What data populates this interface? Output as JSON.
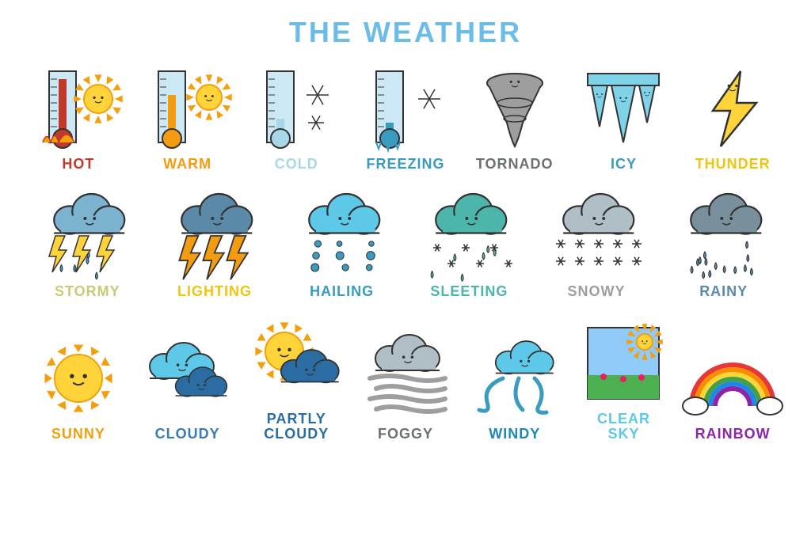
{
  "title": "THE WEATHER",
  "title_color": "#6bbde8",
  "background_color": "#ffffff",
  "font_family": "Comic Sans MS",
  "colors": {
    "sun_fill": "#ffd43b",
    "sun_stroke": "#f59e0b",
    "thermo_hot": "#c0392b",
    "thermo_warm": "#f39c12",
    "thermo_cold": "#a8d8e8",
    "thermo_freeze": "#3a9bc1",
    "cloud_blue": "#7bb3d1",
    "cloud_dark": "#5a8aa8",
    "cloud_teal": "#4db6ac",
    "cloud_grey": "#b0bec5",
    "cloud_olive": "#78909c",
    "cloud_bright": "#5ec8e8",
    "cloud_deep": "#2b6ca3",
    "tornado": "#9e9e9e",
    "ice": "#7fd3e8",
    "bolt": "#ffd43b",
    "rainbow_r": "#e53935",
    "rainbow_o": "#fb8c00",
    "rainbow_y": "#fdd835",
    "rainbow_g": "#43a047",
    "rainbow_b": "#1e88e5",
    "rainbow_v": "#8e24aa",
    "grass": "#4caf50",
    "sky": "#90caf9",
    "outline": "#333333"
  },
  "rows": [
    [
      {
        "id": "hot",
        "label": "HOT",
        "label_color": "#c0392b"
      },
      {
        "id": "warm",
        "label": "WARM",
        "label_color": "#f39c12"
      },
      {
        "id": "cold",
        "label": "COLD",
        "label_color": "#a8d8e8"
      },
      {
        "id": "freezing",
        "label": "FREEZING",
        "label_color": "#3a9bc1"
      },
      {
        "id": "tornado",
        "label": "TORNADO",
        "label_color": "#6b7073"
      },
      {
        "id": "icy",
        "label": "ICY",
        "label_color": "#3a9bc1"
      },
      {
        "id": "thunder",
        "label": "THUNDER",
        "label_color": "#f1c40f"
      }
    ],
    [
      {
        "id": "stormy",
        "label": "STORMY",
        "label_color": "#c9c97a"
      },
      {
        "id": "lighting",
        "label": "LIGHTING",
        "label_color": "#f1c40f"
      },
      {
        "id": "hailing",
        "label": "HAILING",
        "label_color": "#3a9bc1"
      },
      {
        "id": "sleeting",
        "label": "SLEETING",
        "label_color": "#4db6ac"
      },
      {
        "id": "snowy",
        "label": "SNOWY",
        "label_color": "#9e9e9e"
      },
      {
        "id": "rainy",
        "label": "RAINY",
        "label_color": "#5a8aa8"
      }
    ],
    [
      {
        "id": "sunny",
        "label": "SUNNY",
        "label_color": "#f59e0b"
      },
      {
        "id": "cloudy",
        "label": "CLOUDY",
        "label_color": "#3a7ab5"
      },
      {
        "id": "partlycloudy",
        "label": "PARTLY\nCLOUDY",
        "label_color": "#2b6ca3"
      },
      {
        "id": "foggy",
        "label": "FOGGY",
        "label_color": "#6b7073"
      },
      {
        "id": "windy",
        "label": "WINDY",
        "label_color": "#1e88b5"
      },
      {
        "id": "clearsky",
        "label": "CLEAR\nSKY",
        "label_color": "#5ec8e8"
      },
      {
        "id": "rainbow",
        "label": "RAINBOW",
        "label_color": "#8e24aa"
      }
    ]
  ]
}
